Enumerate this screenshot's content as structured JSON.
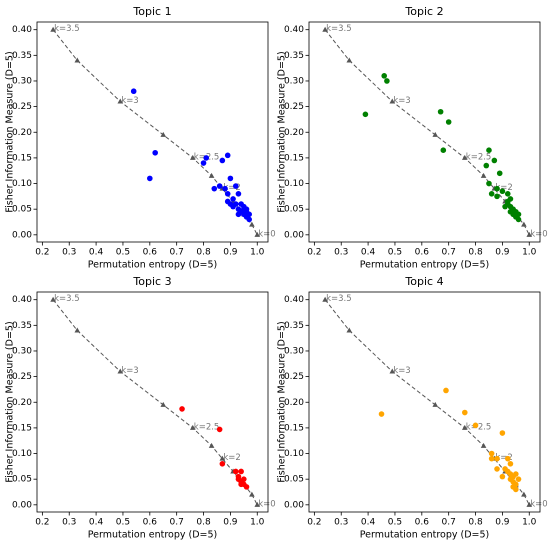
{
  "chart_data": [
    {
      "type": "scatter",
      "title": "Topic 1",
      "x_label": "Permutation entropy (D=5)",
      "y_label": "Fisher Information Measure (D=5)",
      "xlim": [
        0.18,
        1.04
      ],
      "ylim": [
        -0.014,
        0.415
      ],
      "xticks": [
        0.2,
        0.3,
        0.4,
        0.5,
        0.6,
        0.7,
        0.8,
        0.9,
        {
          "value": 1.0,
          "label": "1.0"
        }
      ],
      "yticks": [
        {
          "value": 0,
          "label": "0.00"
        },
        {
          "value": 0.05,
          "label": "0.05"
        },
        {
          "value": 0.1,
          "label": "0.10"
        },
        {
          "value": 0.15,
          "label": "0.15"
        },
        {
          "value": 0.2,
          "label": "0.20"
        },
        {
          "value": 0.25,
          "label": "0.25"
        },
        {
          "value": 0.3,
          "label": "0.30"
        },
        {
          "value": 0.35,
          "label": "0.35"
        },
        {
          "value": 0.4,
          "label": "0.40"
        }
      ],
      "reference": {
        "color": "#555555",
        "x": [
          0.24,
          0.33,
          0.49,
          0.65,
          0.76,
          0.83,
          0.87,
          0.91,
          0.95,
          0.98,
          1.0
        ],
        "y": [
          0.4,
          0.34,
          0.26,
          0.195,
          0.15,
          0.115,
          0.09,
          0.065,
          0.04,
          0.02,
          0.0
        ],
        "labels": [
          "k=3.5",
          null,
          "k=3",
          null,
          "k=2.5",
          null,
          "k=2",
          null,
          null,
          null,
          "k=0"
        ]
      },
      "points": {
        "color": "#0000ff",
        "x": [
          0.54,
          0.62,
          0.6,
          0.8,
          0.81,
          0.87,
          0.89,
          0.9,
          0.84,
          0.86,
          0.88,
          0.89,
          0.9,
          0.91,
          0.92,
          0.93,
          0.92,
          0.93,
          0.94,
          0.94,
          0.95,
          0.95,
          0.96,
          0.96,
          0.97,
          0.97,
          0.93,
          0.89,
          0.91,
          0.95,
          0.96
        ],
        "y": [
          0.28,
          0.16,
          0.11,
          0.14,
          0.15,
          0.145,
          0.155,
          0.11,
          0.09,
          0.095,
          0.09,
          0.08,
          0.06,
          0.07,
          0.095,
          0.08,
          0.06,
          0.05,
          0.045,
          0.06,
          0.05,
          0.04,
          0.045,
          0.035,
          0.04,
          0.03,
          0.04,
          0.065,
          0.055,
          0.055,
          0.05
        ]
      }
    },
    {
      "type": "scatter",
      "title": "Topic 2",
      "x_label": "Permutation entropy (D=5)",
      "y_label": "Fisher Information Measure (D=5)",
      "xlim": [
        0.18,
        1.04
      ],
      "ylim": [
        -0.014,
        0.415
      ],
      "xticks": [
        0.2,
        0.3,
        0.4,
        0.5,
        0.6,
        0.7,
        0.8,
        0.9,
        {
          "value": 1.0,
          "label": "1.0"
        }
      ],
      "yticks": [
        {
          "value": 0,
          "label": "0.00"
        },
        {
          "value": 0.05,
          "label": "0.05"
        },
        {
          "value": 0.1,
          "label": "0.10"
        },
        {
          "value": 0.15,
          "label": "0.15"
        },
        {
          "value": 0.2,
          "label": "0.20"
        },
        {
          "value": 0.25,
          "label": "0.25"
        },
        {
          "value": 0.3,
          "label": "0.30"
        },
        {
          "value": 0.35,
          "label": "0.35"
        },
        {
          "value": 0.4,
          "label": "0.40"
        }
      ],
      "reference": {
        "color": "#555555",
        "x": [
          0.24,
          0.33,
          0.49,
          0.65,
          0.76,
          0.83,
          0.87,
          0.91,
          0.95,
          0.98,
          1.0
        ],
        "y": [
          0.4,
          0.34,
          0.26,
          0.195,
          0.15,
          0.115,
          0.09,
          0.065,
          0.04,
          0.02,
          0.0
        ],
        "labels": [
          "k=3.5",
          null,
          "k=3",
          null,
          "k=2.5",
          null,
          "k=2",
          null,
          null,
          null,
          "k=0"
        ]
      },
      "points": {
        "color": "#008000",
        "x": [
          0.39,
          0.46,
          0.47,
          0.67,
          0.7,
          0.68,
          0.85,
          0.87,
          0.84,
          0.89,
          0.85,
          0.86,
          0.88,
          0.88,
          0.9,
          0.92,
          0.93,
          0.92,
          0.93,
          0.94,
          0.93,
          0.94,
          0.95,
          0.95,
          0.96,
          0.96,
          0.92,
          0.91
        ],
        "y": [
          0.235,
          0.31,
          0.3,
          0.24,
          0.22,
          0.165,
          0.165,
          0.145,
          0.135,
          0.12,
          0.1,
          0.08,
          0.075,
          0.09,
          0.085,
          0.08,
          0.07,
          0.06,
          0.055,
          0.05,
          0.045,
          0.04,
          0.045,
          0.035,
          0.04,
          0.03,
          0.065,
          0.055
        ]
      }
    },
    {
      "type": "scatter",
      "title": "Topic 3",
      "x_label": "Permutation entropy (D=5)",
      "y_label": "Fisher Information Measure (D=5)",
      "xlim": [
        0.18,
        1.04
      ],
      "ylim": [
        -0.014,
        0.415
      ],
      "xticks": [
        0.2,
        0.3,
        0.4,
        0.5,
        0.6,
        0.7,
        0.8,
        0.9,
        {
          "value": 1.0,
          "label": "1.0"
        }
      ],
      "yticks": [
        {
          "value": 0,
          "label": "0.00"
        },
        {
          "value": 0.05,
          "label": "0.05"
        },
        {
          "value": 0.1,
          "label": "0.10"
        },
        {
          "value": 0.15,
          "label": "0.15"
        },
        {
          "value": 0.2,
          "label": "0.20"
        },
        {
          "value": 0.25,
          "label": "0.25"
        },
        {
          "value": 0.3,
          "label": "0.30"
        },
        {
          "value": 0.35,
          "label": "0.35"
        },
        {
          "value": 0.4,
          "label": "0.40"
        }
      ],
      "reference": {
        "color": "#555555",
        "x": [
          0.24,
          0.33,
          0.49,
          0.65,
          0.76,
          0.83,
          0.87,
          0.91,
          0.95,
          0.98,
          1.0
        ],
        "y": [
          0.4,
          0.34,
          0.26,
          0.195,
          0.15,
          0.115,
          0.09,
          0.065,
          0.04,
          0.02,
          0.0
        ],
        "labels": [
          "k=3.5",
          null,
          "k=3",
          null,
          "k=2.5",
          null,
          "k=2",
          null,
          null,
          null,
          "k=0"
        ]
      },
      "points": {
        "color": "#ff0000",
        "x": [
          0.72,
          0.86,
          0.87,
          0.92,
          0.93,
          0.94,
          0.93,
          0.94,
          0.95,
          0.94,
          0.95,
          0.96
        ],
        "y": [
          0.187,
          0.147,
          0.08,
          0.065,
          0.055,
          0.065,
          0.05,
          0.045,
          0.04,
          0.04,
          0.05,
          0.035
        ]
      }
    },
    {
      "type": "scatter",
      "title": "Topic 4",
      "x_label": "Permutation entropy (D=5)",
      "y_label": "Fisher Information Measure (D=5)",
      "xlim": [
        0.18,
        1.04
      ],
      "ylim": [
        -0.014,
        0.415
      ],
      "xticks": [
        0.2,
        0.3,
        0.4,
        0.5,
        0.6,
        0.7,
        0.8,
        0.9,
        {
          "value": 1.0,
          "label": "1.0"
        }
      ],
      "yticks": [
        {
          "value": 0,
          "label": "0.00"
        },
        {
          "value": 0.05,
          "label": "0.05"
        },
        {
          "value": 0.1,
          "label": "0.10"
        },
        {
          "value": 0.15,
          "label": "0.15"
        },
        {
          "value": 0.2,
          "label": "0.20"
        },
        {
          "value": 0.25,
          "label": "0.25"
        },
        {
          "value": 0.3,
          "label": "0.30"
        },
        {
          "value": 0.35,
          "label": "0.35"
        },
        {
          "value": 0.4,
          "label": "0.40"
        }
      ],
      "reference": {
        "color": "#555555",
        "x": [
          0.24,
          0.33,
          0.49,
          0.65,
          0.76,
          0.83,
          0.87,
          0.91,
          0.95,
          0.98,
          1.0
        ],
        "y": [
          0.4,
          0.34,
          0.26,
          0.195,
          0.15,
          0.115,
          0.09,
          0.065,
          0.04,
          0.02,
          0.0
        ],
        "labels": [
          "k=3.5",
          null,
          "k=3",
          null,
          "k=2.5",
          null,
          "k=2",
          null,
          null,
          null,
          "k=0"
        ]
      },
      "points": {
        "color": "#ffa500",
        "x": [
          0.45,
          0.69,
          0.76,
          0.8,
          0.9,
          0.86,
          0.88,
          0.86,
          0.88,
          0.91,
          0.92,
          0.93,
          0.92,
          0.93,
          0.94,
          0.93,
          0.94,
          0.95,
          0.94,
          0.95,
          0.96,
          0.95,
          0.9
        ],
        "y": [
          0.177,
          0.223,
          0.18,
          0.155,
          0.14,
          0.1,
          0.09,
          0.09,
          0.07,
          0.07,
          0.09,
          0.08,
          0.065,
          0.06,
          0.055,
          0.05,
          0.045,
          0.04,
          0.035,
          0.06,
          0.05,
          0.03,
          0.055
        ]
      }
    }
  ]
}
